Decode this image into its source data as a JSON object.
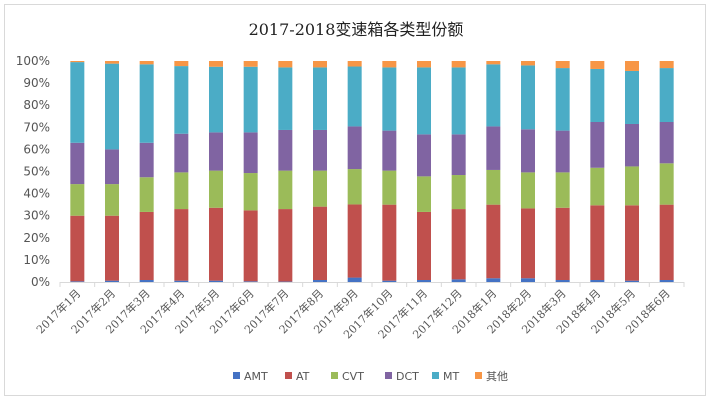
{
  "chart_data": {
    "type": "bar",
    "stacked": true,
    "percent": true,
    "title": "2017-2018变速箱各类型份额",
    "xlabel": "",
    "ylabel": "",
    "ylim": [
      0,
      100
    ],
    "yticks": [
      "0%",
      "10%",
      "20%",
      "30%",
      "40%",
      "50%",
      "60%",
      "70%",
      "80%",
      "90%",
      "100%"
    ],
    "grid": false,
    "legend": "bottom",
    "categories": [
      "2017年1月",
      "2017年2月",
      "2017年3月",
      "2017年4月",
      "2017年5月",
      "2017年6月",
      "2017年7月",
      "2017年8月",
      "2017年9月",
      "2017年10月",
      "2017年11月",
      "2017年12月",
      "2018年1月",
      "2018年2月",
      "2018年3月",
      "2018年4月",
      "2018年5月",
      "2018年6月"
    ],
    "series": [
      {
        "name": "AMT",
        "color": "#4472C4",
        "values": [
          0.3,
          0.6,
          0.9,
          0.6,
          0.6,
          0.3,
          0.2,
          0.9,
          2.0,
          0.6,
          0.9,
          1.2,
          1.7,
          1.7,
          0.9,
          0.9,
          0.6,
          0.9
        ]
      },
      {
        "name": "AT",
        "color": "#C0504D",
        "values": [
          29.7,
          29.4,
          30.8,
          32.4,
          33.0,
          32.1,
          32.8,
          33.2,
          33.1,
          34.4,
          30.8,
          31.8,
          33.3,
          31.6,
          32.7,
          33.8,
          34.1,
          34.1
        ]
      },
      {
        "name": "CVT",
        "color": "#9BBB59",
        "values": [
          14.3,
          14.3,
          15.7,
          16.6,
          16.8,
          16.9,
          17.4,
          16.3,
          16.0,
          15.4,
          16.1,
          15.4,
          15.7,
          16.3,
          16.0,
          17.0,
          17.6,
          18.7
        ]
      },
      {
        "name": "DCT",
        "color": "#8064A2",
        "values": [
          18.7,
          15.7,
          15.6,
          17.5,
          17.3,
          18.4,
          18.4,
          18.4,
          19.3,
          18.1,
          19.0,
          18.4,
          19.7,
          19.5,
          18.9,
          20.7,
          19.2,
          18.7
        ]
      },
      {
        "name": "MT",
        "color": "#4BACC6",
        "values": [
          36.5,
          38.8,
          35.5,
          30.6,
          29.7,
          29.7,
          28.3,
          28.3,
          27.1,
          28.6,
          30.3,
          30.3,
          28.1,
          28.9,
          28.3,
          24.0,
          24.0,
          24.4
        ]
      },
      {
        "name": "其他",
        "color": "#F79646",
        "values": [
          0.5,
          1.2,
          1.5,
          2.3,
          2.6,
          2.6,
          2.9,
          2.9,
          2.5,
          2.9,
          2.9,
          2.9,
          1.5,
          2.0,
          3.2,
          3.6,
          4.5,
          3.2
        ]
      }
    ]
  }
}
